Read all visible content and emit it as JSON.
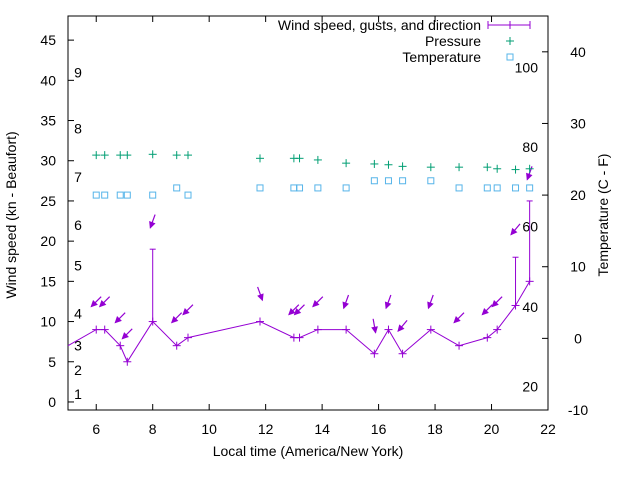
{
  "chart_data": {
    "type": "line",
    "xlabel": "Local time (America/New York)",
    "ylabel_left": "Wind speed (kn - Beaufort)",
    "ylabel_right": "Temperature (C - F)",
    "xlim": [
      5,
      22
    ],
    "ylim_left": [
      -1,
      48
    ],
    "ylim_right": [
      -10,
      45
    ],
    "x_ticks": [
      6,
      8,
      10,
      12,
      14,
      16,
      18,
      20,
      22
    ],
    "y_ticks_left": [
      0,
      5,
      10,
      15,
      20,
      25,
      30,
      35,
      40,
      45
    ],
    "y_ticks_right": [
      -10,
      0,
      10,
      20,
      30,
      40
    ],
    "beaufort_labels": [
      {
        "label": "1",
        "y": 1
      },
      {
        "label": "2",
        "y": 4
      },
      {
        "label": "3",
        "y": 7
      },
      {
        "label": "4",
        "y": 11
      },
      {
        "label": "5",
        "y": 17
      },
      {
        "label": "6",
        "y": 22
      },
      {
        "label": "7",
        "y": 28
      },
      {
        "label": "8",
        "y": 34
      },
      {
        "label": "9",
        "y": 41
      }
    ],
    "fahrenheit_labels": [
      {
        "label": "20",
        "t": -6.7
      },
      {
        "label": "40",
        "t": 4.4
      },
      {
        "label": "60",
        "t": 15.6
      },
      {
        "label": "80",
        "t": 26.7
      },
      {
        "label": "100",
        "t": 37.8
      }
    ],
    "legend_position": "top-right",
    "colors": {
      "wind": "#9400d3",
      "pressure": "#009e73",
      "temperature": "#56b4e9"
    },
    "series": [
      {
        "name": "Wind speed, gusts, and direction",
        "axis": "left",
        "x": [
          5.0,
          6.0,
          6.3,
          6.85,
          7.1,
          8.0,
          8.85,
          9.25,
          11.8,
          13.0,
          13.2,
          13.85,
          14.85,
          15.85,
          16.35,
          16.85,
          17.85,
          18.85,
          19.85,
          20.2,
          20.85,
          21.35
        ],
        "values": [
          7,
          9,
          9,
          7,
          5,
          10,
          7,
          8,
          10,
          8,
          8,
          9,
          9,
          6,
          9,
          6,
          9,
          7,
          8,
          9,
          12,
          15
        ],
        "gusts": [
          null,
          null,
          null,
          null,
          null,
          19,
          null,
          null,
          null,
          null,
          null,
          null,
          null,
          null,
          null,
          null,
          null,
          null,
          null,
          null,
          18,
          25
        ],
        "direction_deg": [
          null,
          225,
          225,
          225,
          225,
          200,
          225,
          225,
          160,
          225,
          225,
          225,
          200,
          170,
          200,
          220,
          200,
          225,
          225,
          225,
          220,
          200
        ]
      },
      {
        "name": "Pressure",
        "axis": "left",
        "x": [
          6.0,
          6.3,
          6.85,
          7.1,
          8.0,
          8.85,
          9.25,
          11.8,
          13.0,
          13.2,
          13.85,
          14.85,
          15.85,
          16.35,
          16.85,
          17.85,
          18.85,
          19.85,
          20.2,
          20.85,
          21.35
        ],
        "values": [
          30.7,
          30.7,
          30.7,
          30.7,
          30.8,
          30.7,
          30.7,
          30.3,
          30.3,
          30.3,
          30.1,
          29.7,
          29.6,
          29.5,
          29.3,
          29.2,
          29.2,
          29.2,
          29.0,
          28.9,
          29.0
        ]
      },
      {
        "name": "Temperature",
        "axis": "right",
        "x": [
          6.0,
          6.3,
          6.85,
          7.1,
          8.0,
          8.85,
          9.25,
          11.8,
          13.0,
          13.2,
          13.85,
          14.85,
          15.85,
          16.35,
          16.85,
          17.85,
          18.85,
          19.85,
          20.2,
          20.85,
          21.35
        ],
        "values": [
          20,
          20,
          20,
          20,
          20,
          21,
          20,
          21,
          21,
          21,
          21,
          21,
          22,
          22,
          22,
          22,
          21,
          21,
          21,
          21,
          21
        ]
      }
    ]
  }
}
